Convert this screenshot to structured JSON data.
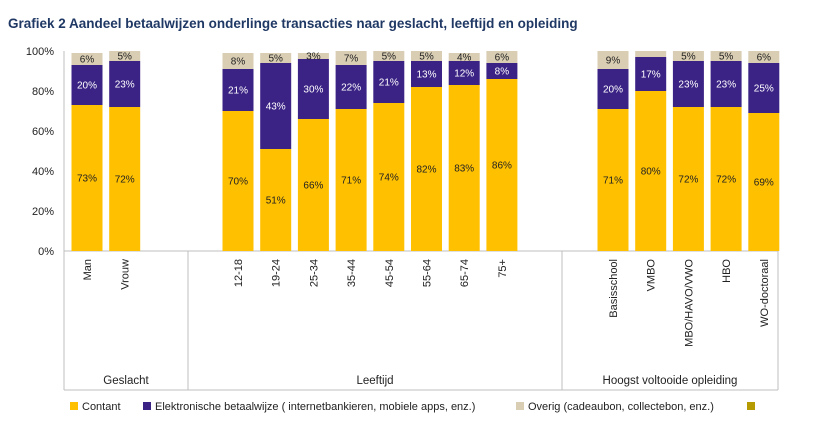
{
  "chart_data": {
    "type": "bar",
    "stacked": true,
    "title": "Grafiek 2 Aandeel betaalwijzen onderlinge transacties naar geslacht, leeftijd en opleiding",
    "xlabel": "",
    "ylabel": "",
    "ylim": [
      0,
      100
    ],
    "yticks": [
      "0%",
      "20%",
      "40%",
      "60%",
      "80%",
      "100%"
    ],
    "grid": false,
    "legend_position": "bottom",
    "groups": [
      {
        "label": "Geslacht",
        "categories": [
          "Man",
          "Vrouw"
        ]
      },
      {
        "label": "Leeftijd",
        "categories": [
          "12-18",
          "19-24",
          "25-34",
          "35-44",
          "45-54",
          "55-64",
          "65-74",
          "75+"
        ]
      },
      {
        "label": "Hoogst voltooide opleiding",
        "categories": [
          "Basisschool",
          "VMBO",
          "MBO/HAVO/VWO",
          "HBO",
          "WO-doctoraal"
        ]
      }
    ],
    "categories": [
      "Man",
      "Vrouw",
      "12-18",
      "19-24",
      "25-34",
      "35-44",
      "45-54",
      "55-64",
      "65-74",
      "75+",
      "Basisschool",
      "VMBO",
      "MBO/HAVO/VWO",
      "HBO",
      "WO-doctoraal"
    ],
    "series": [
      {
        "name": "Contant",
        "color": "#ffc000",
        "label_color": "#222222",
        "values": [
          73,
          72,
          70,
          51,
          66,
          71,
          74,
          82,
          83,
          86,
          71,
          80,
          72,
          72,
          69
        ]
      },
      {
        "name": "Elektronische betaalwijze ( internetbankieren, mobiele apps, enz.)",
        "color": "#3b2385",
        "label_color": "#ffffff",
        "values": [
          20,
          23,
          21,
          43,
          30,
          22,
          21,
          13,
          12,
          8,
          20,
          17,
          23,
          23,
          25
        ]
      },
      {
        "name": "Overig (cadeaubon, collectebon, enz.)",
        "color": "#d9cdb3",
        "label_color": "#222222",
        "values": [
          6,
          5,
          8,
          5,
          3,
          7,
          5,
          5,
          4,
          6,
          9,
          3,
          5,
          5,
          6
        ]
      },
      {
        "name": "",
        "color": "#b59a00",
        "label_color": "#222222",
        "values": [
          0,
          0,
          0,
          0,
          0,
          0,
          0,
          0,
          0,
          0,
          0,
          0,
          0,
          0,
          0
        ]
      }
    ],
    "data_labels": [
      [
        "73%",
        "72%",
        "70%",
        "51%",
        "66%",
        "71%",
        "74%",
        "82%",
        "83%",
        "86%",
        "71%",
        "80%",
        "72%",
        "72%",
        "69%"
      ],
      [
        "20%",
        "23%",
        "21%",
        "43%",
        "30%",
        "22%",
        "21%",
        "13%",
        "12%",
        "8%",
        "20%",
        "17%",
        "23%",
        "23%",
        "25%"
      ],
      [
        "6%",
        "5%",
        "8%",
        "5%",
        "3%",
        "7%",
        "5%",
        "5%",
        "4%",
        "6%",
        "9%",
        "",
        "5%",
        "5%",
        "6%"
      ],
      [
        "",
        "",
        "",
        "",
        "",
        "",
        "",
        "",
        "",
        "",
        "",
        "",
        "",
        "",
        ""
      ]
    ]
  }
}
